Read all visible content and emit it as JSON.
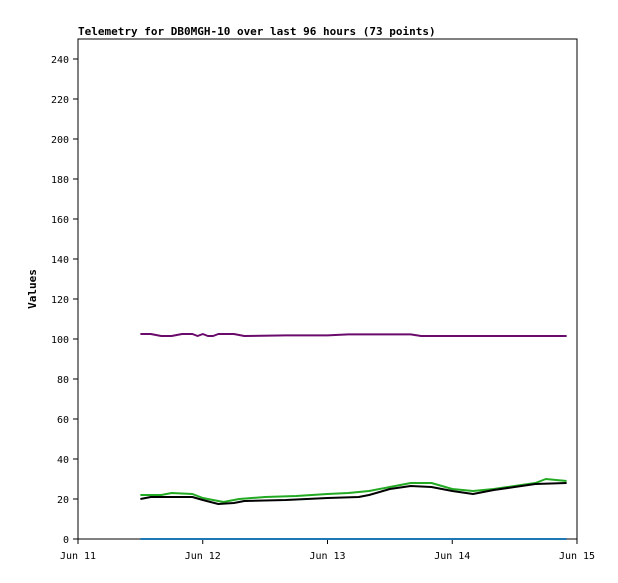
{
  "chart_data": {
    "type": "line",
    "title": "Telemetry for DB0MGH-10 over last 96 hours (73 points)",
    "xlabel": "",
    "ylabel": "Values",
    "xlim": [
      "Jun 11",
      "Jun 15"
    ],
    "ylim": [
      0,
      250
    ],
    "x_ticks": [
      "Jun 11",
      "Jun 12",
      "Jun 13",
      "Jun 14",
      "Jun 15"
    ],
    "y_ticks": [
      0,
      20,
      40,
      60,
      80,
      100,
      120,
      140,
      160,
      180,
      200,
      220,
      240
    ],
    "grid": false,
    "legend": "none",
    "series": [
      {
        "color": "#6a0a6a",
        "points": [
          [
            "Jun 11 12:00",
            102.5
          ],
          [
            "Jun 11 14:00",
            102.5
          ],
          [
            "Jun 11 16:00",
            101.5
          ],
          [
            "Jun 11 18:00",
            101.5
          ],
          [
            "Jun 11 20:00",
            102.5
          ],
          [
            "Jun 11 22:00",
            102.5
          ],
          [
            "Jun 11 23:00",
            101.5
          ],
          [
            "Jun 12 00:00",
            102.5
          ],
          [
            "Jun 12 01:00",
            101.5
          ],
          [
            "Jun 12 02:00",
            101.5
          ],
          [
            "Jun 12 03:00",
            102.5
          ],
          [
            "Jun 12 06:00",
            102.5
          ],
          [
            "Jun 12 08:00",
            101.5
          ],
          [
            "Jun 12 16:00",
            101.8
          ],
          [
            "Jun 13 00:00",
            101.8
          ],
          [
            "Jun 13 04:00",
            102.3
          ],
          [
            "Jun 13 16:00",
            102.3
          ],
          [
            "Jun 13 18:00",
            101.5
          ],
          [
            "Jun 14 00:00",
            101.5
          ],
          [
            "Jun 14 12:00",
            101.5
          ],
          [
            "Jun 14 22:00",
            101.5
          ]
        ]
      },
      {
        "color": "#22aa22",
        "points": [
          [
            "Jun 11 12:00",
            22
          ],
          [
            "Jun 11 16:00",
            22
          ],
          [
            "Jun 11 18:00",
            23
          ],
          [
            "Jun 11 22:00",
            22.5
          ],
          [
            "Jun 12 00:00",
            20.5
          ],
          [
            "Jun 12 02:00",
            19.5
          ],
          [
            "Jun 12 04:00",
            18.5
          ],
          [
            "Jun 12 07:00",
            20
          ],
          [
            "Jun 12 12:00",
            21
          ],
          [
            "Jun 12 18:00",
            21.5
          ],
          [
            "Jun 13 00:00",
            22.5
          ],
          [
            "Jun 13 04:00",
            23
          ],
          [
            "Jun 13 08:00",
            24
          ],
          [
            "Jun 13 12:00",
            26
          ],
          [
            "Jun 13 16:00",
            28
          ],
          [
            "Jun 13 20:00",
            28
          ],
          [
            "Jun 14 00:00",
            25
          ],
          [
            "Jun 14 04:00",
            24
          ],
          [
            "Jun 14 08:00",
            25
          ],
          [
            "Jun 14 12:00",
            26.5
          ],
          [
            "Jun 14 16:00",
            28
          ],
          [
            "Jun 14 18:00",
            30
          ],
          [
            "Jun 14 22:00",
            29
          ]
        ]
      },
      {
        "color": "#000000",
        "points": [
          [
            "Jun 11 12:00",
            20
          ],
          [
            "Jun 11 14:00",
            21
          ],
          [
            "Jun 11 22:00",
            21
          ],
          [
            "Jun 12 00:00",
            19.5
          ],
          [
            "Jun 12 03:00",
            17.5
          ],
          [
            "Jun 12 06:00",
            18
          ],
          [
            "Jun 12 08:00",
            19
          ],
          [
            "Jun 12 16:00",
            19.5
          ],
          [
            "Jun 13 00:00",
            20.5
          ],
          [
            "Jun 13 06:00",
            21
          ],
          [
            "Jun 13 08:00",
            22
          ],
          [
            "Jun 13 12:00",
            25
          ],
          [
            "Jun 13 16:00",
            26.5
          ],
          [
            "Jun 13 20:00",
            26
          ],
          [
            "Jun 14 00:00",
            24
          ],
          [
            "Jun 14 04:00",
            22.5
          ],
          [
            "Jun 14 08:00",
            24.5
          ],
          [
            "Jun 14 12:00",
            26
          ],
          [
            "Jun 14 16:00",
            27.5
          ],
          [
            "Jun 14 22:00",
            28
          ]
        ]
      },
      {
        "color": "#1f77b4",
        "points": [
          [
            "Jun 11 12:00",
            0
          ],
          [
            "Jun 14 22:00",
            0
          ]
        ]
      }
    ]
  }
}
